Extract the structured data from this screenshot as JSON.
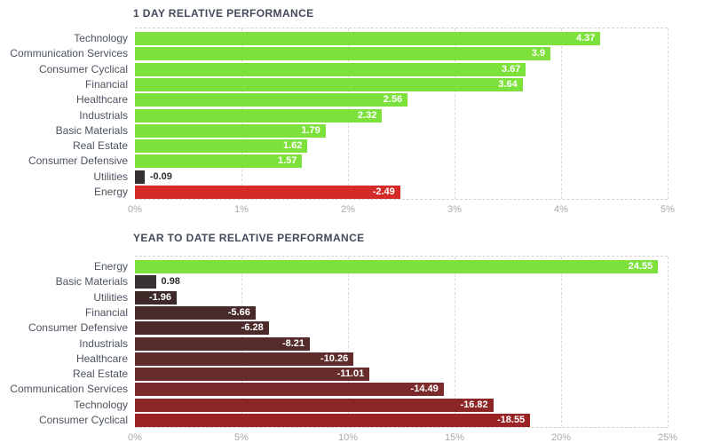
{
  "chart_data": [
    {
      "type": "bar",
      "orientation": "horizontal",
      "title": "1 DAY RELATIVE PERFORMANCE",
      "categories": [
        "Technology",
        "Communication Services",
        "Consumer Cyclical",
        "Financial",
        "Healthcare",
        "Industrials",
        "Basic Materials",
        "Real Estate",
        "Consumer Defensive",
        "Utilities",
        "Energy"
      ],
      "values": [
        4.37,
        3.9,
        3.67,
        3.64,
        2.56,
        2.32,
        1.79,
        1.62,
        1.57,
        -0.09,
        -2.49
      ],
      "value_labels": [
        "4.37",
        "3.9",
        "3.67",
        "3.64",
        "2.56",
        "2.32",
        "1.79",
        "1.62",
        "1.57",
        "-0.09",
        "-2.49"
      ],
      "bar_colors": [
        "#7de13c",
        "#7de13c",
        "#7de13c",
        "#7de13c",
        "#7de13c",
        "#7de13c",
        "#7de13c",
        "#7de13c",
        "#7de13c",
        "#343030",
        "#d42a28"
      ],
      "xlim": [
        0,
        5
      ],
      "x_tick_labels": [
        "0%",
        "1%",
        "2%",
        "3%",
        "4%",
        "5%"
      ],
      "xlabel": "",
      "ylabel": "",
      "grid": "vertical-dashed",
      "legend": "none",
      "note": "bars drawn by absolute value; green = positive, red/dark = negative"
    },
    {
      "type": "bar",
      "orientation": "horizontal",
      "title": "YEAR TO DATE RELATIVE PERFORMANCE",
      "categories": [
        "Energy",
        "Basic Materials",
        "Utilities",
        "Financial",
        "Consumer Defensive",
        "Industrials",
        "Healthcare",
        "Real Estate",
        "Communication Services",
        "Technology",
        "Consumer Cyclical"
      ],
      "values": [
        24.55,
        0.98,
        -1.96,
        -5.66,
        -6.28,
        -8.21,
        -10.26,
        -11.01,
        -14.49,
        -16.82,
        -18.55
      ],
      "value_labels": [
        "24.55",
        "0.98",
        "-1.96",
        "-5.66",
        "-6.28",
        "-8.21",
        "-10.26",
        "-11.01",
        "-14.49",
        "-16.82",
        "-18.55"
      ],
      "bar_colors": [
        "#7de13c",
        "#393434",
        "#3d2a29",
        "#482a2a",
        "#4c2a2a",
        "#552b2b",
        "#5f2c2c",
        "#672d2d",
        "#7b2b2b",
        "#8c2525",
        "#9a2323"
      ],
      "xlim": [
        0,
        25
      ],
      "x_tick_labels": [
        "0%",
        "5%",
        "10%",
        "15%",
        "20%",
        "25%"
      ],
      "xlabel": "",
      "ylabel": "",
      "grid": "vertical-dashed",
      "legend": "none",
      "note": "bars drawn by absolute value; green = positive, red/dark = negative"
    }
  ],
  "style_colors": {
    "title_text": "#434a59",
    "category_text": "#4d5460",
    "tick_text": "#a9a9a9",
    "gridline": "#dadada",
    "value_inside_text": "#ffffff",
    "value_outside_text": "#2e2e2e",
    "background": "#ffffff"
  }
}
